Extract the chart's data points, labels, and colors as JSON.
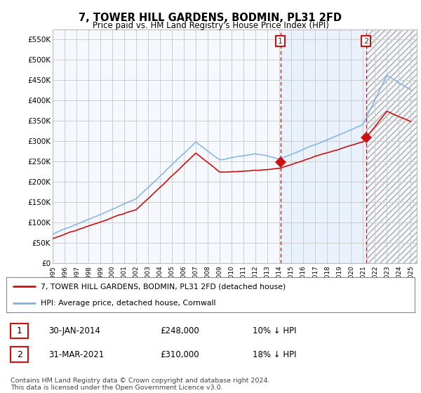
{
  "title": "7, TOWER HILL GARDENS, BODMIN, PL31 2FD",
  "subtitle": "Price paid vs. HM Land Registry's House Price Index (HPI)",
  "ylabel_ticks": [
    "£0",
    "£50K",
    "£100K",
    "£150K",
    "£200K",
    "£250K",
    "£300K",
    "£350K",
    "£400K",
    "£450K",
    "£500K",
    "£550K"
  ],
  "ytick_values": [
    0,
    50000,
    100000,
    150000,
    200000,
    250000,
    300000,
    350000,
    400000,
    450000,
    500000,
    550000
  ],
  "ylim": [
    0,
    575000
  ],
  "x_start_year": 1995,
  "x_end_year": 2025,
  "sale1_year": 2014.08,
  "sale1_price": 248000,
  "sale2_year": 2021.25,
  "sale2_price": 310000,
  "hpi_color": "#7fb2e0",
  "price_color": "#cc1111",
  "vline1_color": "#cc1111",
  "vline2_color": "#cc1111",
  "shade_color": "#ddeeff",
  "hatch_color": "#bbbbbb",
  "grid_color": "#cccccc",
  "plot_bg": "#f5f8fc",
  "legend_line1": "7, TOWER HILL GARDENS, BODMIN, PL31 2FD (detached house)",
  "legend_line2": "HPI: Average price, detached house, Cornwall",
  "footer": "Contains HM Land Registry data © Crown copyright and database right 2024.\nThis data is licensed under the Open Government Licence v3.0.",
  "table_row1_num": "1",
  "table_row1_date": "30-JAN-2014",
  "table_row1_price": "£248,000",
  "table_row1_hpi": "10% ↓ HPI",
  "table_row2_num": "2",
  "table_row2_date": "31-MAR-2021",
  "table_row2_price": "£310,000",
  "table_row2_hpi": "18% ↓ HPI"
}
